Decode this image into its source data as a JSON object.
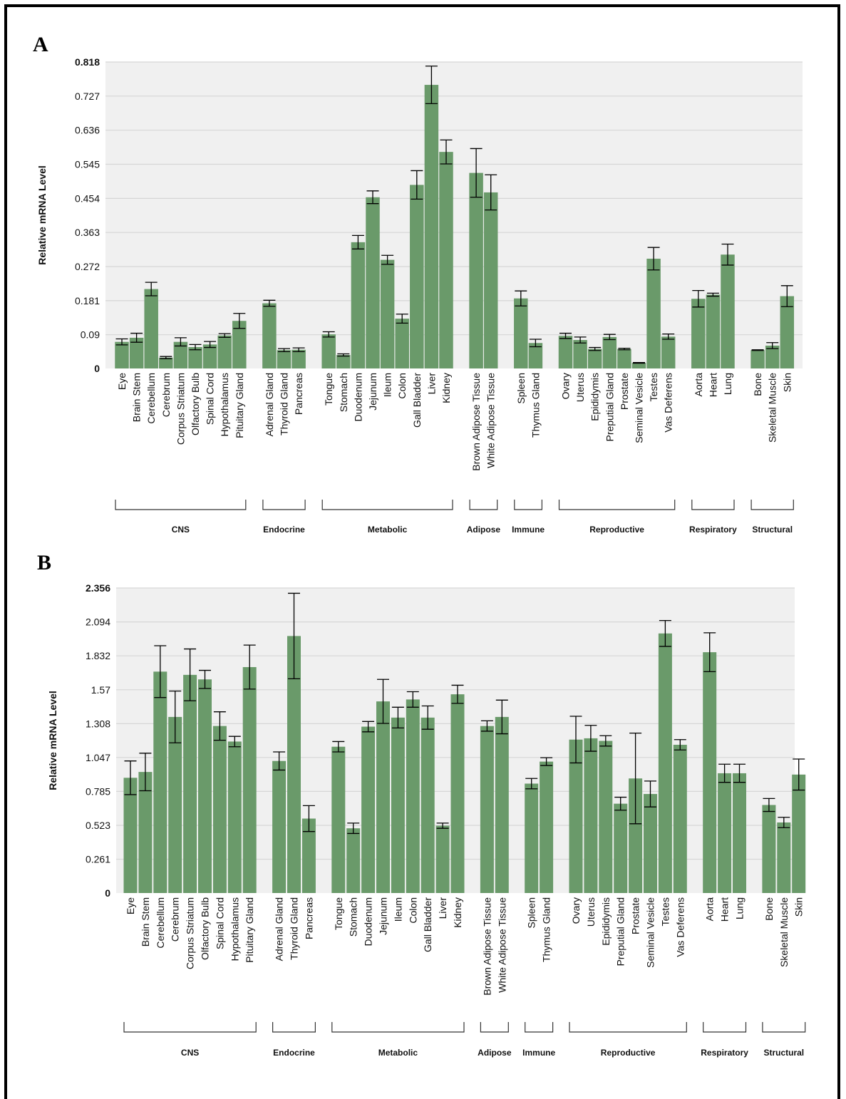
{
  "colors": {
    "bar": "#6a9a6a",
    "plot_bg": "#f0f0f0",
    "grid": "#d6d6d6",
    "error": "#000000"
  },
  "chart_data": [
    {
      "panel": "A",
      "type": "bar",
      "ylabel": "Relative mRNA Level",
      "ylim": [
        0,
        0.818
      ],
      "yticks": [
        "0",
        "0.09",
        "0.181",
        "0.272",
        "0.363",
        "0.454",
        "0.545",
        "0.636",
        "0.727",
        "0.818"
      ],
      "grid": true,
      "categories": [
        "Eye",
        "Brain Stem",
        "Cerebellum",
        "Cerebrum",
        "Corpus Striatum",
        "Olfactory Bulb",
        "Spinal Cord",
        "Hypothalamus",
        "Pituitary Gland",
        "Adrenal Gland",
        "Thyroid Gland",
        "Pancreas",
        "Tongue",
        "Stomach",
        "Duodenum",
        "Jejunum",
        "Ileum",
        "Colon",
        "Gall Bladder",
        "Liver",
        "Kidney",
        "Brown Adipose Tissue",
        "White Adipose Tissue",
        "Spleen",
        "Thymus Gland",
        "Ovary",
        "Uterus",
        "Epididymis",
        "Preputial Gland",
        "Prostate",
        "Seminal Vesicle",
        "Testes",
        "Vas Deferens",
        "Aorta",
        "Heart",
        "Lung",
        "Bone",
        "Skeletal Muscle",
        "Skin"
      ],
      "values": [
        0.071,
        0.082,
        0.212,
        0.029,
        0.071,
        0.057,
        0.064,
        0.088,
        0.127,
        0.174,
        0.049,
        0.05,
        0.091,
        0.036,
        0.337,
        0.457,
        0.29,
        0.133,
        0.49,
        0.757,
        0.578,
        0.522,
        0.47,
        0.187,
        0.068,
        0.087,
        0.076,
        0.052,
        0.084,
        0.052,
        0.015,
        0.293,
        0.085,
        0.186,
        0.197,
        0.304,
        0.049,
        0.061,
        0.193
      ],
      "errors": [
        0.008,
        0.012,
        0.018,
        0.003,
        0.011,
        0.007,
        0.008,
        0.005,
        0.02,
        0.008,
        0.004,
        0.005,
        0.007,
        0.003,
        0.018,
        0.017,
        0.012,
        0.012,
        0.038,
        0.05,
        0.032,
        0.065,
        0.047,
        0.02,
        0.01,
        0.007,
        0.008,
        0.004,
        0.007,
        0.002,
        0.001,
        0.03,
        0.007,
        0.022,
        0.004,
        0.028,
        0.001,
        0.008,
        0.028
      ],
      "groups": [
        {
          "label": "CNS",
          "count": 9
        },
        {
          "label": "Endocrine",
          "count": 3
        },
        {
          "label": "Metabolic",
          "count": 9
        },
        {
          "label": "Adipose",
          "count": 2
        },
        {
          "label": "Immune",
          "count": 2
        },
        {
          "label": "Reproductive",
          "count": 8
        },
        {
          "label": "Respiratory",
          "count": 3
        },
        {
          "label": "Structural",
          "count": 3
        }
      ]
    },
    {
      "panel": "B",
      "type": "bar",
      "ylabel": "Relative mRNA Level",
      "ylim": [
        0,
        2.356
      ],
      "yticks": [
        "0",
        "0.261",
        "0.523",
        "0.785",
        "1.047",
        "1.308",
        "1.57",
        "1.832",
        "2.094",
        "2.356"
      ],
      "grid": true,
      "categories": [
        "Eye",
        "Brain Stem",
        "Cerebellum",
        "Cerebrum",
        "Corpus Striatum",
        "Olfactory Bulb",
        "Spinal Cord",
        "Hypothalamus",
        "Pituitary Gland",
        "Adrenal Gland",
        "Thyroid Gland",
        "Pancreas",
        "Tongue",
        "Stomach",
        "Duodenum",
        "Jejunum",
        "Ileum",
        "Colon",
        "Gall Bladder",
        "Liver",
        "Kidney",
        "Brown Adipose Tissue",
        "White Adipose Tissue",
        "Spleen",
        "Thymus Gland",
        "Ovary",
        "Uterus",
        "Epididymis",
        "Preputial Gland",
        "Prostate",
        "Seminal Vesicle",
        "Testes",
        "Vas Deferens",
        "Aorta",
        "Heart",
        "Lung",
        "Bone",
        "Skeletal Muscle",
        "Skin"
      ],
      "values": [
        0.89,
        0.935,
        1.71,
        1.36,
        1.685,
        1.65,
        1.29,
        1.17,
        1.745,
        1.02,
        1.985,
        0.575,
        1.13,
        0.5,
        1.285,
        1.48,
        1.355,
        1.495,
        1.355,
        0.52,
        1.535,
        1.29,
        1.36,
        0.845,
        1.015,
        1.185,
        1.195,
        1.175,
        0.69,
        0.885,
        0.765,
        2.005,
        1.145,
        1.86,
        0.925,
        0.925,
        0.68,
        0.545,
        0.915
      ],
      "errors": [
        0.13,
        0.145,
        0.2,
        0.2,
        0.2,
        0.07,
        0.11,
        0.04,
        0.17,
        0.07,
        0.33,
        0.1,
        0.04,
        0.04,
        0.04,
        0.17,
        0.08,
        0.06,
        0.09,
        0.02,
        0.07,
        0.04,
        0.13,
        0.04,
        0.03,
        0.18,
        0.1,
        0.04,
        0.05,
        0.35,
        0.1,
        0.1,
        0.04,
        0.15,
        0.07,
        0.07,
        0.05,
        0.04,
        0.12
      ],
      "groups": [
        {
          "label": "CNS",
          "count": 9
        },
        {
          "label": "Endocrine",
          "count": 3
        },
        {
          "label": "Metabolic",
          "count": 9
        },
        {
          "label": "Adipose",
          "count": 2
        },
        {
          "label": "Immune",
          "count": 2
        },
        {
          "label": "Reproductive",
          "count": 8
        },
        {
          "label": "Respiratory",
          "count": 3
        },
        {
          "label": "Structural",
          "count": 3
        }
      ]
    }
  ]
}
